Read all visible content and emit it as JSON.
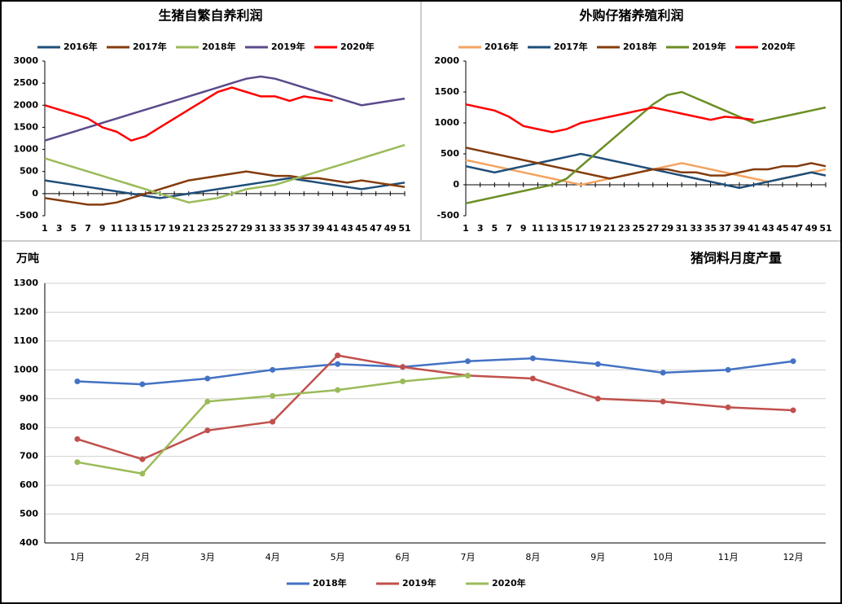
{
  "chart_data": [
    {
      "type": "line",
      "title": "生猪自繁自养利润",
      "legend": "top",
      "grid": false,
      "markers": false,
      "x": [
        1,
        3,
        5,
        7,
        9,
        11,
        13,
        15,
        17,
        19,
        21,
        23,
        25,
        27,
        29,
        31,
        33,
        35,
        37,
        39,
        41,
        43,
        45,
        47,
        49,
        51
      ],
      "xlim": [
        1,
        51
      ],
      "xticks": [
        1,
        3,
        5,
        7,
        9,
        11,
        13,
        15,
        17,
        19,
        21,
        23,
        25,
        27,
        29,
        31,
        33,
        35,
        37,
        39,
        41,
        43,
        45,
        47,
        49,
        51
      ],
      "ylim": [
        -500,
        3000
      ],
      "yticks": [
        -500,
        0,
        500,
        1000,
        1500,
        2000,
        2500,
        3000
      ],
      "series": [
        {
          "name": "2016年",
          "color": "#1f4e79",
          "values": [
            300,
            250,
            200,
            150,
            100,
            50,
            0,
            -50,
            -100,
            -50,
            0,
            50,
            100,
            150,
            200,
            250,
            300,
            350,
            300,
            250,
            200,
            150,
            100,
            150,
            200,
            250
          ]
        },
        {
          "name": "2017年",
          "color": "#843c0c",
          "values": [
            -100,
            -150,
            -200,
            -250,
            -250,
            -200,
            -100,
            0,
            100,
            200,
            300,
            350,
            400,
            450,
            500,
            450,
            400,
            400,
            350,
            350,
            300,
            250,
            300,
            250,
            200,
            150
          ]
        },
        {
          "name": "2018年",
          "color": "#9bbb59",
          "values": [
            800,
            700,
            600,
            500,
            400,
            300,
            200,
            100,
            0,
            -100,
            -200,
            -150,
            -100,
            0,
            100,
            150,
            200,
            300,
            400,
            500,
            600,
            700,
            800,
            900,
            1000,
            1100
          ]
        },
        {
          "name": "2019年",
          "color": "#5b4a8b",
          "values": [
            1200,
            1300,
            1400,
            1500,
            1600,
            1700,
            1800,
            1900,
            2000,
            2100,
            2200,
            2300,
            2400,
            2500,
            2600,
            2650,
            2600,
            2500,
            2400,
            2300,
            2200,
            2100,
            2000,
            2050,
            2100,
            2150
          ]
        },
        {
          "name": "2020年",
          "color": "#ff0000",
          "values": [
            2000,
            1900,
            1800,
            1700,
            1500,
            1400,
            1200,
            1300,
            1500,
            1700,
            1900,
            2100,
            2300,
            2400,
            2300,
            2200,
            2200,
            2100,
            2200,
            2150,
            2100,
            null,
            null,
            null,
            null,
            null
          ]
        }
      ]
    },
    {
      "type": "line",
      "title": "外购仔猪养殖利润",
      "legend": "top",
      "grid": false,
      "markers": false,
      "x": [
        1,
        3,
        5,
        7,
        9,
        11,
        13,
        15,
        17,
        19,
        21,
        23,
        25,
        27,
        29,
        31,
        33,
        35,
        37,
        39,
        41,
        43,
        45,
        47,
        49,
        51
      ],
      "xlim": [
        1,
        51
      ],
      "xticks": [
        1,
        3,
        5,
        7,
        9,
        11,
        13,
        15,
        17,
        19,
        21,
        23,
        25,
        27,
        29,
        31,
        33,
        35,
        37,
        39,
        41,
        43,
        45,
        47,
        49,
        51
      ],
      "ylim": [
        -500,
        2000
      ],
      "yticks": [
        -500,
        0,
        500,
        1000,
        1500,
        2000
      ],
      "series": [
        {
          "name": "2016年",
          "color": "#f4a460",
          "values": [
            400,
            350,
            300,
            250,
            200,
            150,
            100,
            50,
            0,
            50,
            100,
            150,
            200,
            250,
            300,
            350,
            300,
            250,
            200,
            150,
            100,
            50,
            100,
            150,
            200,
            250
          ]
        },
        {
          "name": "2017年",
          "color": "#1f4e79",
          "values": [
            300,
            250,
            200,
            250,
            300,
            350,
            400,
            450,
            500,
            450,
            400,
            350,
            300,
            250,
            200,
            150,
            100,
            50,
            0,
            -50,
            0,
            50,
            100,
            150,
            200,
            150
          ]
        },
        {
          "name": "2018年",
          "color": "#843c0c",
          "values": [
            600,
            550,
            500,
            450,
            400,
            350,
            300,
            250,
            200,
            150,
            100,
            150,
            200,
            250,
            250,
            200,
            200,
            150,
            150,
            200,
            250,
            250,
            300,
            300,
            350,
            300
          ]
        },
        {
          "name": "2019年",
          "color": "#6b8e23",
          "values": [
            -300,
            -250,
            -200,
            -150,
            -100,
            -50,
            0,
            100,
            300,
            500,
            700,
            900,
            1100,
            1300,
            1450,
            1500,
            1400,
            1300,
            1200,
            1100,
            1000,
            1050,
            1100,
            1150,
            1200,
            1250
          ]
        },
        {
          "name": "2020年",
          "color": "#ff0000",
          "values": [
            1300,
            1250,
            1200,
            1100,
            950,
            900,
            850,
            900,
            1000,
            1050,
            1100,
            1150,
            1200,
            1250,
            1200,
            1150,
            1100,
            1050,
            1100,
            1080,
            1050,
            null,
            null,
            null,
            null,
            null
          ]
        }
      ]
    },
    {
      "type": "line",
      "title": "猪饲料月度产量",
      "y_label": "万吨",
      "legend": "bottom",
      "grid": true,
      "markers": true,
      "categories": [
        "1月",
        "2月",
        "3月",
        "4月",
        "5月",
        "6月",
        "7月",
        "8月",
        "9月",
        "10月",
        "11月",
        "12月"
      ],
      "ylim": [
        400,
        1300
      ],
      "yticks": [
        400,
        500,
        600,
        700,
        800,
        900,
        1000,
        1100,
        1200,
        1300
      ],
      "series": [
        {
          "name": "2018年",
          "color": "#4472c4",
          "values": [
            960,
            950,
            970,
            1000,
            1020,
            1010,
            1030,
            1040,
            1020,
            990,
            1000,
            1030
          ]
        },
        {
          "name": "2019年",
          "color": "#c0504d",
          "values": [
            760,
            690,
            790,
            820,
            1050,
            1010,
            980,
            970,
            900,
            890,
            870,
            860
          ]
        },
        {
          "name": "2020年",
          "color": "#9bbb59",
          "values": [
            680,
            640,
            890,
            910,
            930,
            960,
            980,
            null,
            null,
            null,
            null,
            null
          ]
        }
      ]
    }
  ]
}
